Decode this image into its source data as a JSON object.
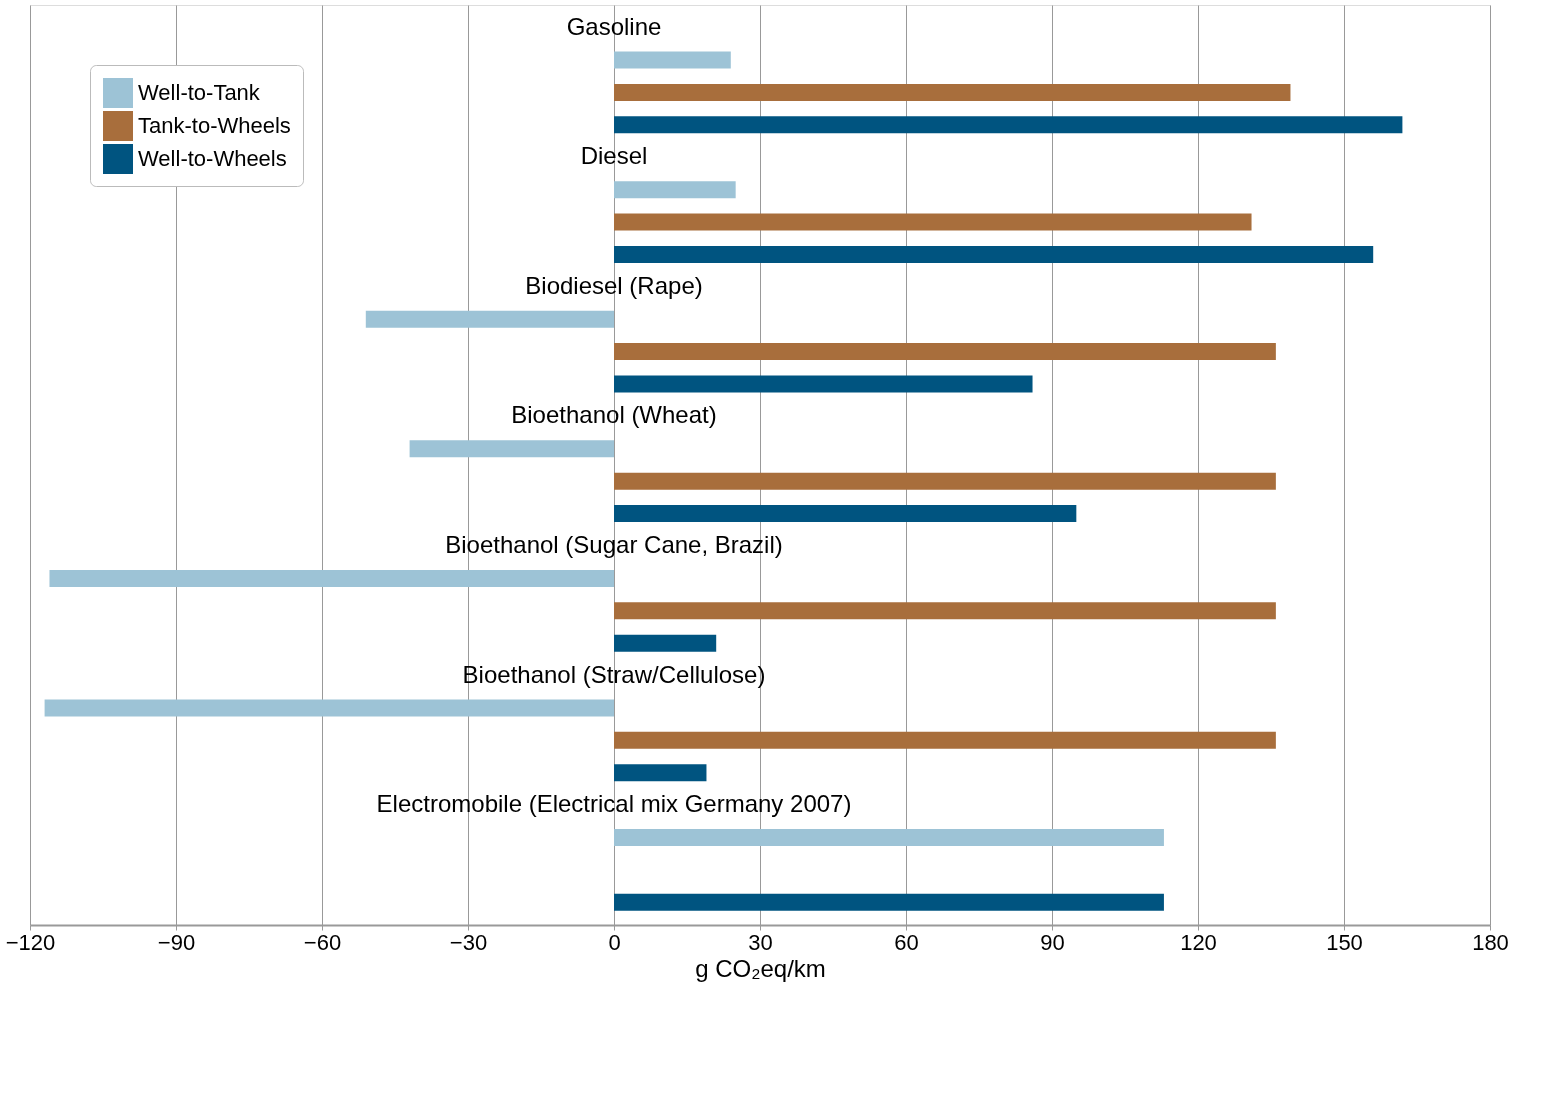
{
  "chart_data": {
    "type": "bar",
    "orientation": "horizontal",
    "categories": [
      "Gasoline",
      "Diesel",
      "Biodiesel (Rape)",
      "Bioethanol (Wheat)",
      "Bioethanol (Sugar Cane, Brazil)",
      "Bioethanol (Straw/Cellulose)",
      "Electromobile (Electrical mix Germany 2007)"
    ],
    "series": [
      {
        "name": "Well-to-Tank",
        "color": "#9dc3d6",
        "values": [
          24,
          25,
          -51,
          -42,
          -116,
          -117,
          113
        ]
      },
      {
        "name": "Tank-to-Wheels",
        "color": "#a86e3c",
        "values": [
          139,
          131,
          136,
          136,
          136,
          136,
          null
        ]
      },
      {
        "name": "Well-to-Wheels",
        "color": "#005480",
        "values": [
          162,
          156,
          86,
          95,
          21,
          19,
          113
        ]
      }
    ],
    "xlabel": "g CO₂eq/km",
    "xlim": [
      -120,
      180
    ],
    "xticks": [
      -120,
      -90,
      -60,
      -30,
      0,
      30,
      60,
      90,
      120,
      150,
      180
    ],
    "grid": "x",
    "legend": "top left"
  }
}
